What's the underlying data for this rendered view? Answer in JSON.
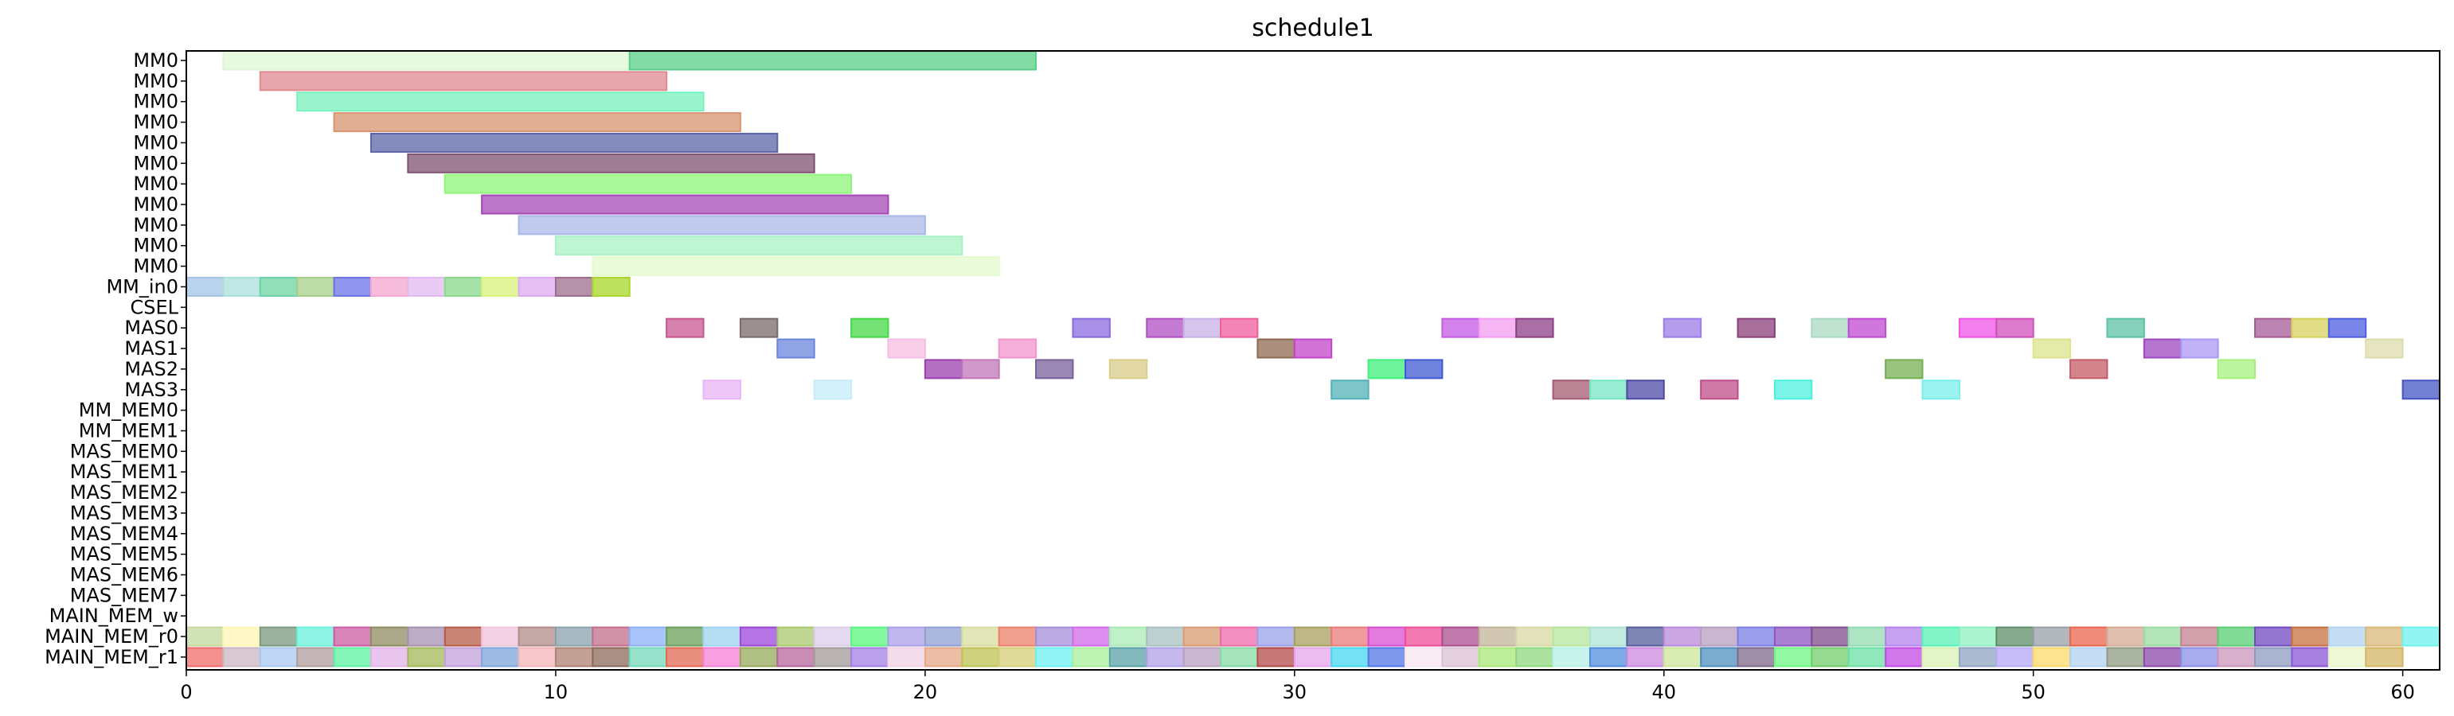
{
  "chart_data": {
    "type": "gantt",
    "title": "schedule1",
    "xlabel": "",
    "ylabel": "",
    "xlim": [
      0,
      61
    ],
    "grid": false,
    "legend": "none",
    "x_ticks": [
      0,
      10,
      20,
      30,
      40,
      50,
      60
    ],
    "rows": [
      "MM0",
      "MM0",
      "MM0",
      "MM0",
      "MM0",
      "MM0",
      "MM0",
      "MM0",
      "MM0",
      "MM0",
      "MM0",
      "MM_in0",
      "CSEL",
      "MAS0",
      "MAS1",
      "MAS2",
      "MAS3",
      "MM_MEM0",
      "MM_MEM1",
      "MAS_MEM0",
      "MAS_MEM1",
      "MAS_MEM2",
      "MAS_MEM3",
      "MAS_MEM4",
      "MAS_MEM5",
      "MAS_MEM6",
      "MAS_MEM7",
      "MAIN_MEM_w",
      "MAIN_MEM_r0",
      "MAIN_MEM_r1"
    ],
    "tasks": [
      {
        "row": 0,
        "start": 1,
        "end": 12,
        "color": "#dff7d4"
      },
      {
        "row": 0,
        "start": 12,
        "end": 23,
        "color": "#59cf87"
      },
      {
        "row": 1,
        "start": 2,
        "end": 13,
        "color": "#e08a90"
      },
      {
        "row": 2,
        "start": 3,
        "end": 14,
        "color": "#78f2bd"
      },
      {
        "row": 3,
        "start": 4,
        "end": 15,
        "color": "#d99470"
      },
      {
        "row": 4,
        "start": 5,
        "end": 16,
        "color": "#5b65a8"
      },
      {
        "row": 5,
        "start": 6,
        "end": 17,
        "color": "#7f5272"
      },
      {
        "row": 6,
        "start": 7,
        "end": 18,
        "color": "#8ef57a"
      },
      {
        "row": 7,
        "start": 8,
        "end": 19,
        "color": "#a548b5"
      },
      {
        "row": 8,
        "start": 9,
        "end": 20,
        "color": "#a9b8e8"
      },
      {
        "row": 9,
        "start": 10,
        "end": 21,
        "color": "#a8f2c4"
      },
      {
        "row": 10,
        "start": 11,
        "end": 22,
        "color": "#e3fbcd"
      },
      {
        "row": 11,
        "start": 0,
        "end": 1,
        "color": "#a3c4e5"
      },
      {
        "row": 11,
        "start": 1,
        "end": 2,
        "color": "#a9dfd9"
      },
      {
        "row": 11,
        "start": 2,
        "end": 3,
        "color": "#6cd3a4"
      },
      {
        "row": 11,
        "start": 3,
        "end": 4,
        "color": "#a5cf88"
      },
      {
        "row": 11,
        "start": 4,
        "end": 5,
        "color": "#6b72e8"
      },
      {
        "row": 11,
        "start": 5,
        "end": 6,
        "color": "#f6a5cf"
      },
      {
        "row": 11,
        "start": 6,
        "end": 7,
        "color": "#e2b9f2"
      },
      {
        "row": 11,
        "start": 7,
        "end": 8,
        "color": "#8ad88b"
      },
      {
        "row": 11,
        "start": 8,
        "end": 9,
        "color": "#d9f27a"
      },
      {
        "row": 11,
        "start": 9,
        "end": 10,
        "color": "#ddaaf0"
      },
      {
        "row": 11,
        "start": 10,
        "end": 11,
        "color": "#9c6d8e"
      },
      {
        "row": 11,
        "start": 11,
        "end": 12,
        "color": "#a8d62a"
      },
      {
        "row": 13,
        "start": 13,
        "end": 14,
        "color": "#c8578f"
      },
      {
        "row": 13,
        "start": 15,
        "end": 16,
        "color": "#7b6a6a"
      },
      {
        "row": 13,
        "start": 18,
        "end": 19,
        "color": "#47d847"
      },
      {
        "row": 13,
        "start": 24,
        "end": 25,
        "color": "#8b6ae0"
      },
      {
        "row": 13,
        "start": 26,
        "end": 27,
        "color": "#b04fc3"
      },
      {
        "row": 13,
        "start": 27,
        "end": 28,
        "color": "#c7b2e5"
      },
      {
        "row": 13,
        "start": 28,
        "end": 29,
        "color": "#ef5d9c"
      },
      {
        "row": 13,
        "start": 34,
        "end": 35,
        "color": "#c45ae6"
      },
      {
        "row": 13,
        "start": 35,
        "end": 36,
        "color": "#f39ef0"
      },
      {
        "row": 13,
        "start": 36,
        "end": 37,
        "color": "#8d3f86"
      },
      {
        "row": 13,
        "start": 40,
        "end": 41,
        "color": "#9c7ce8"
      },
      {
        "row": 13,
        "start": 42,
        "end": 43,
        "color": "#8b3f7a"
      },
      {
        "row": 13,
        "start": 44,
        "end": 45,
        "color": "#a9d9c0"
      },
      {
        "row": 13,
        "start": 45,
        "end": 46,
        "color": "#c04ad2"
      },
      {
        "row": 13,
        "start": 48,
        "end": 49,
        "color": "#ef54e6"
      },
      {
        "row": 13,
        "start": 49,
        "end": 50,
        "color": "#d14fbb"
      },
      {
        "row": 13,
        "start": 52,
        "end": 53,
        "color": "#5cc2a6"
      },
      {
        "row": 13,
        "start": 56,
        "end": 57,
        "color": "#a55b96"
      },
      {
        "row": 13,
        "start": 57,
        "end": 58,
        "color": "#d7d15e"
      },
      {
        "row": 13,
        "start": 58,
        "end": 59,
        "color": "#4d5fe0"
      },
      {
        "row": 14,
        "start": 16,
        "end": 17,
        "color": "#6b85dc"
      },
      {
        "row": 14,
        "start": 19,
        "end": 20,
        "color": "#f5bde2"
      },
      {
        "row": 14,
        "start": 22,
        "end": 23,
        "color": "#f296cc"
      },
      {
        "row": 14,
        "start": 29,
        "end": 30,
        "color": "#8e6a52"
      },
      {
        "row": 14,
        "start": 30,
        "end": 31,
        "color": "#c245c7"
      },
      {
        "row": 14,
        "start": 50,
        "end": 51,
        "color": "#dbe38c"
      },
      {
        "row": 14,
        "start": 53,
        "end": 54,
        "color": "#9e48c0"
      },
      {
        "row": 14,
        "start": 54,
        "end": 55,
        "color": "#ab98f2"
      },
      {
        "row": 14,
        "start": 59,
        "end": 60,
        "color": "#dcdcac"
      },
      {
        "row": 15,
        "start": 20,
        "end": 21,
        "color": "#9a3fae"
      },
      {
        "row": 15,
        "start": 21,
        "end": 22,
        "color": "#c277ba"
      },
      {
        "row": 15,
        "start": 23,
        "end": 24,
        "color": "#76609a"
      },
      {
        "row": 15,
        "start": 25,
        "end": 26,
        "color": "#d9cc88"
      },
      {
        "row": 15,
        "start": 32,
        "end": 33,
        "color": "#3ff07c"
      },
      {
        "row": 15,
        "start": 33,
        "end": 34,
        "color": "#3f5ad2"
      },
      {
        "row": 15,
        "start": 46,
        "end": 47,
        "color": "#75b053"
      },
      {
        "row": 15,
        "start": 51,
        "end": 52,
        "color": "#c45b66"
      },
      {
        "row": 15,
        "start": 55,
        "end": 56,
        "color": "#a7f07d"
      },
      {
        "row": 16,
        "start": 14,
        "end": 15,
        "color": "#e9b5f8"
      },
      {
        "row": 16,
        "start": 17,
        "end": 18,
        "color": "#c6ecf9"
      },
      {
        "row": 16,
        "start": 31,
        "end": 32,
        "color": "#51b2b7"
      },
      {
        "row": 16,
        "start": 37,
        "end": 38,
        "color": "#a45b72"
      },
      {
        "row": 16,
        "start": 38,
        "end": 39,
        "color": "#74e5c2"
      },
      {
        "row": 16,
        "start": 39,
        "end": 40,
        "color": "#4d4aa6"
      },
      {
        "row": 16,
        "start": 41,
        "end": 42,
        "color": "#bf4d88"
      },
      {
        "row": 16,
        "start": 43,
        "end": 44,
        "color": "#4df0de"
      },
      {
        "row": 16,
        "start": 47,
        "end": 48,
        "color": "#78efea"
      },
      {
        "row": 16,
        "start": 60,
        "end": 61,
        "color": "#4454c0"
      }
    ],
    "main_mem_r0_colors": [
      "#c3d99c",
      "#fff6b4",
      "#7a9a7d",
      "#6cf1dc",
      "#cc5ba1",
      "#8f8c62",
      "#a590b2",
      "#b55b47",
      "#f0c3dc",
      "#b08a8a",
      "#8aa3ad",
      "#c26e8a",
      "#8cb0f6",
      "#6aa05a",
      "#a0d3f0",
      "#9b45d9",
      "#a9c96e",
      "#dbcdea",
      "#59f57e",
      "#ab9fe8",
      "#8f9fd2",
      "#d8dca0",
      "#ec7f6a",
      "#a58fd9",
      "#d06ae8",
      "#a9ebb5",
      "#a9c0c0",
      "#d89a72",
      "#ee6aa8",
      "#9aa0ea",
      "#a8a05e",
      "#eb7a7a",
      "#d94ed1",
      "#ef4d96",
      "#aa4d8f",
      "#c1b49a",
      "#d8d8a3",
      "#b6e69c",
      "#ade3d5",
      "#545d99",
      "#b98ad9",
      "#b79fc0",
      "#7b7de5",
      "#8c55c2",
      "#7f4d8c",
      "#91dcb0",
      "#b483eb",
      "#57f0b5",
      "#8ff0c0",
      "#5f8f6a",
      "#9aa0a8",
      "#e8644d",
      "#d5ab95",
      "#99dba2",
      "#c2808f",
      "#59cf75",
      "#6f49c0",
      "#c7703f",
      "#b3d3f0",
      "#d9b878",
      "#6ef2f0"
    ],
    "main_mem_r1_colors": [
      "#ef6b6b",
      "#cbb7c2",
      "#a9c8f0",
      "#b09d9d",
      "#5cf0a0",
      "#e3b2e8",
      "#a3b859",
      "#c2a0dc",
      "#7ea6d9",
      "#f3b4b9",
      "#ae8373",
      "#8c6a5b",
      "#75d8b9",
      "#e26a55",
      "#f57fd8",
      "#96a95a",
      "#b5669c",
      "#a39a9a",
      "#a37fe3",
      "#f2d3e6",
      "#e5a888",
      "#bec252",
      "#d6cf7a",
      "#6df0f0",
      "#a9ef9b",
      "#59a3a8",
      "#b0a0e6",
      "#b7a0c0",
      "#85d9a5",
      "#b34a4a",
      "#e5a4e9",
      "#45d8f0",
      "#5376e5",
      "#f5e5ee",
      "#dcc0d6",
      "#a9e87a",
      "#8fd880",
      "#b6f0e6",
      "#4f8ddc",
      "#c98ae0",
      "#cbe59b",
      "#4f8fbd",
      "#7e6a8a",
      "#6df582",
      "#72cd6b",
      "#6be0a6",
      "#c24ae3",
      "#d9f0b5",
      "#8fa5c2",
      "#b7a9f5",
      "#f9da6a",
      "#b3d2f0",
      "#8f9a83",
      "#8c4aa9",
      "#8c8fea",
      "#cb96b9",
      "#8e9abf",
      "#8b55d4",
      "#e9f5c9",
      "#d3b565"
    ]
  }
}
